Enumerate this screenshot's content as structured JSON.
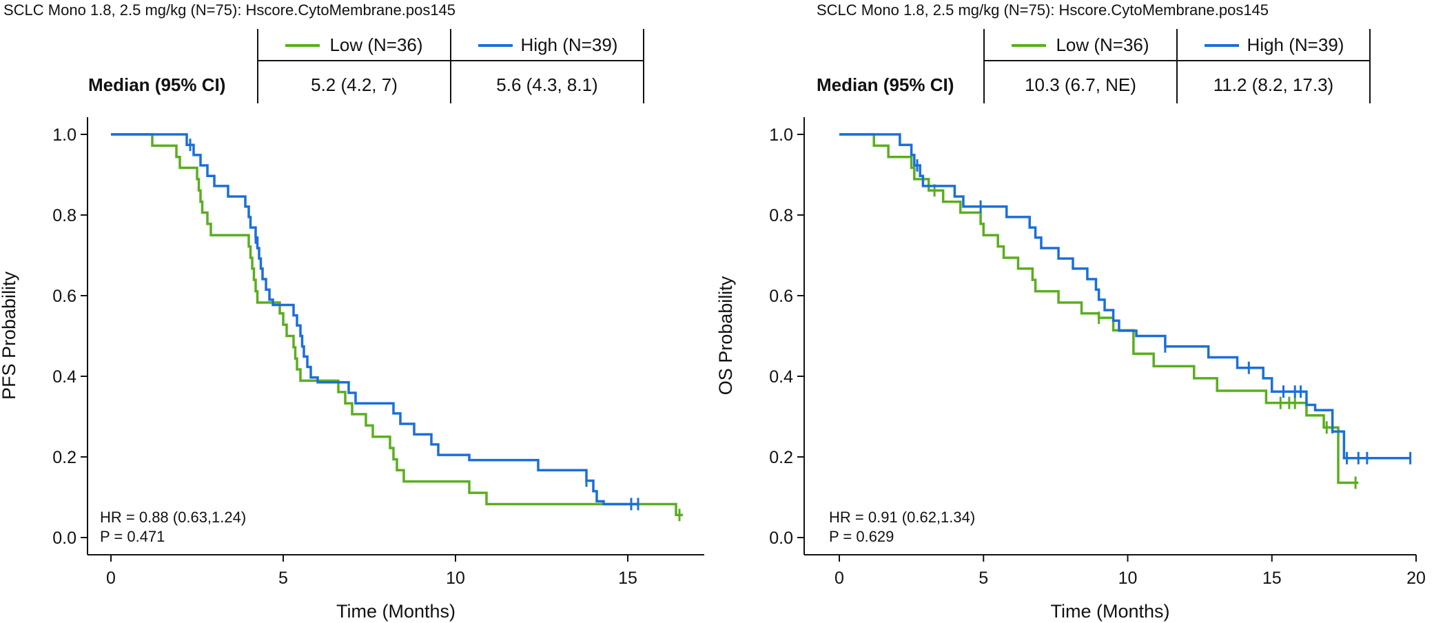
{
  "colors": {
    "low": "#5AAE1E",
    "high": "#1A6FD9",
    "axis": "#111111"
  },
  "chart_data": [
    {
      "type": "line",
      "title": "SCLC Mono 1.8, 2.5 mg/kg (N=75): Hscore.CytoMembrane.pos145",
      "xlabel": "Time (Months)",
      "ylabel": "PFS Probability",
      "xlim": [
        0,
        17
      ],
      "ylim": [
        0,
        1
      ],
      "xticks": [
        "0",
        "5",
        "10",
        "15"
      ],
      "yticks": [
        "0.0",
        "0.2",
        "0.4",
        "0.6",
        "0.8",
        "1.0"
      ],
      "grid": false,
      "legend": [
        "Low (N=36)",
        "High (N=39)"
      ],
      "median_label": "Median (95% CI)",
      "medians": [
        "5.2 (4.2, 7)",
        "5.6 (4.3, 8.1)"
      ],
      "annotations": [
        "HR = 0.88 (0.63,1.24)",
        "P = 0.471"
      ],
      "series": [
        {
          "name": "Low (N=36)",
          "color_key": "low",
          "steps": [
            [
              0,
              1.0
            ],
            [
              1.2,
              0.972
            ],
            [
              1.9,
              0.944
            ],
            [
              2.0,
              0.917
            ],
            [
              2.5,
              0.889
            ],
            [
              2.55,
              0.861
            ],
            [
              2.6,
              0.833
            ],
            [
              2.65,
              0.806
            ],
            [
              2.8,
              0.778
            ],
            [
              2.9,
              0.75
            ],
            [
              4.0,
              0.722
            ],
            [
              4.05,
              0.694
            ],
            [
              4.1,
              0.667
            ],
            [
              4.15,
              0.639
            ],
            [
              4.2,
              0.611
            ],
            [
              4.25,
              0.583
            ],
            [
              4.9,
              0.556
            ],
            [
              5.0,
              0.528
            ],
            [
              5.1,
              0.5
            ],
            [
              5.3,
              0.472
            ],
            [
              5.35,
              0.444
            ],
            [
              5.4,
              0.417
            ],
            [
              5.5,
              0.389
            ],
            [
              6.6,
              0.361
            ],
            [
              6.8,
              0.333
            ],
            [
              7.0,
              0.306
            ],
            [
              7.4,
              0.278
            ],
            [
              7.6,
              0.25
            ],
            [
              8.1,
              0.222
            ],
            [
              8.2,
              0.194
            ],
            [
              8.3,
              0.167
            ],
            [
              8.5,
              0.139
            ],
            [
              10.4,
              0.111
            ],
            [
              10.9,
              0.083
            ],
            [
              16.4,
              0.056
            ]
          ],
          "end": 16.6,
          "censors": [
            16.5
          ]
        },
        {
          "name": "High (N=39)",
          "color_key": "high",
          "steps": [
            [
              0,
              1.0
            ],
            [
              2.2,
              0.974
            ],
            [
              2.4,
              0.949
            ],
            [
              2.6,
              0.923
            ],
            [
              2.8,
              0.897
            ],
            [
              3.0,
              0.872
            ],
            [
              3.4,
              0.846
            ],
            [
              3.9,
              0.821
            ],
            [
              4.0,
              0.795
            ],
            [
              4.05,
              0.769
            ],
            [
              4.2,
              0.744
            ],
            [
              4.25,
              0.718
            ],
            [
              4.3,
              0.692
            ],
            [
              4.35,
              0.667
            ],
            [
              4.4,
              0.641
            ],
            [
              4.5,
              0.615
            ],
            [
              4.6,
              0.59
            ],
            [
              4.7,
              0.577
            ],
            [
              5.3,
              0.551
            ],
            [
              5.4,
              0.526
            ],
            [
              5.5,
              0.5
            ],
            [
              5.55,
              0.474
            ],
            [
              5.6,
              0.449
            ],
            [
              5.7,
              0.423
            ],
            [
              5.8,
              0.397
            ],
            [
              6.0,
              0.385
            ],
            [
              6.9,
              0.359
            ],
            [
              7.1,
              0.333
            ],
            [
              8.2,
              0.308
            ],
            [
              8.4,
              0.282
            ],
            [
              8.8,
              0.256
            ],
            [
              9.3,
              0.231
            ],
            [
              9.5,
              0.205
            ],
            [
              10.4,
              0.192
            ],
            [
              12.4,
              0.167
            ],
            [
              13.8,
              0.141
            ],
            [
              14.0,
              0.115
            ],
            [
              14.1,
              0.09
            ],
            [
              14.3,
              0.083
            ]
          ],
          "end": 15.3,
          "censors": [
            2.3,
            4.2,
            13.8,
            15.1,
            15.3
          ]
        }
      ]
    },
    {
      "type": "line",
      "title": "SCLC Mono 1.8, 2.5 mg/kg (N=75): Hscore.CytoMembrane.pos145",
      "xlabel": "Time (Months)",
      "ylabel": "OS Probability",
      "xlim": [
        0,
        20
      ],
      "ylim": [
        0,
        1
      ],
      "xticks": [
        "0",
        "5",
        "10",
        "15",
        "20"
      ],
      "yticks": [
        "0.0",
        "0.2",
        "0.4",
        "0.6",
        "0.8",
        "1.0"
      ],
      "grid": false,
      "legend": [
        "Low (N=36)",
        "High (N=39)"
      ],
      "median_label": "Median (95% CI)",
      "medians": [
        "10.3 (6.7, NE)",
        "11.2 (8.2, 17.3)"
      ],
      "annotations": [
        "HR = 0.91 (0.62,1.34)",
        "P = 0.629"
      ],
      "series": [
        {
          "name": "Low (N=36)",
          "color_key": "low",
          "steps": [
            [
              0,
              1.0
            ],
            [
              1.2,
              0.972
            ],
            [
              1.7,
              0.944
            ],
            [
              2.5,
              0.917
            ],
            [
              2.6,
              0.889
            ],
            [
              3.1,
              0.861
            ],
            [
              3.6,
              0.833
            ],
            [
              4.2,
              0.806
            ],
            [
              4.9,
              0.778
            ],
            [
              5.0,
              0.75
            ],
            [
              5.5,
              0.722
            ],
            [
              5.7,
              0.694
            ],
            [
              6.2,
              0.667
            ],
            [
              6.7,
              0.639
            ],
            [
              6.8,
              0.611
            ],
            [
              7.6,
              0.583
            ],
            [
              8.4,
              0.556
            ],
            [
              9.0,
              0.545
            ],
            [
              9.5,
              0.514
            ],
            [
              10.2,
              0.456
            ],
            [
              10.9,
              0.425
            ],
            [
              12.3,
              0.395
            ],
            [
              13.1,
              0.364
            ],
            [
              14.8,
              0.334
            ],
            [
              16.2,
              0.303
            ],
            [
              16.8,
              0.273
            ],
            [
              17.3,
              0.136
            ]
          ],
          "end": 18.0,
          "censors": [
            3.3,
            9.0,
            15.3,
            15.6,
            15.8,
            16.9,
            17.1,
            17.9
          ]
        },
        {
          "name": "High (N=39)",
          "color_key": "high",
          "steps": [
            [
              0,
              1.0
            ],
            [
              2.1,
              0.974
            ],
            [
              2.5,
              0.949
            ],
            [
              2.6,
              0.923
            ],
            [
              2.8,
              0.897
            ],
            [
              2.9,
              0.872
            ],
            [
              4.0,
              0.846
            ],
            [
              4.3,
              0.821
            ],
            [
              5.8,
              0.795
            ],
            [
              6.6,
              0.769
            ],
            [
              6.8,
              0.744
            ],
            [
              7.0,
              0.718
            ],
            [
              7.6,
              0.692
            ],
            [
              8.1,
              0.667
            ],
            [
              8.6,
              0.641
            ],
            [
              8.9,
              0.615
            ],
            [
              9.0,
              0.59
            ],
            [
              9.2,
              0.564
            ],
            [
              9.5,
              0.538
            ],
            [
              9.7,
              0.513
            ],
            [
              10.3,
              0.5
            ],
            [
              11.3,
              0.474
            ],
            [
              12.8,
              0.447
            ],
            [
              13.8,
              0.421
            ],
            [
              14.7,
              0.395
            ],
            [
              15.0,
              0.362
            ],
            [
              16.2,
              0.329
            ],
            [
              16.5,
              0.316
            ],
            [
              17.1,
              0.263
            ],
            [
              17.5,
              0.197
            ]
          ],
          "end": 19.8,
          "censors": [
            2.7,
            4.9,
            11.3,
            14.2,
            15.4,
            15.8,
            16.0,
            17.6,
            18.0,
            18.3,
            19.8
          ]
        }
      ]
    }
  ]
}
